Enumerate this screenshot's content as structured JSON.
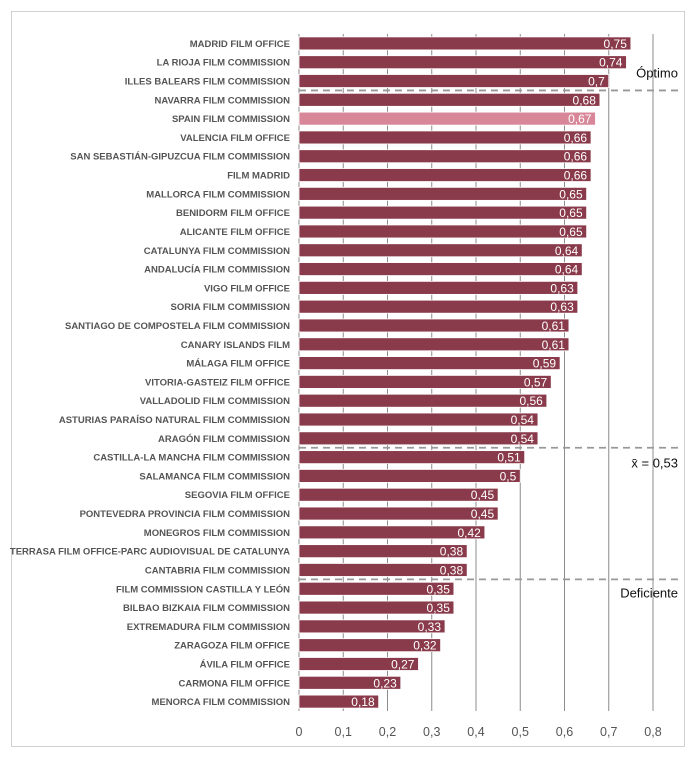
{
  "chart_data": {
    "type": "bar",
    "orientation": "horizontal",
    "title": "",
    "xlabel": "",
    "ylabel": "",
    "xlim": [
      0,
      0.8
    ],
    "grid": true,
    "categories": [
      "MADRID FILM OFFICE",
      "LA RIOJA FILM COMMISSION",
      "ILLES BALEARS FILM COMMISSION",
      "NAVARRA FILM COMMISSION",
      "SPAIN FILM COMMISSION",
      "VALENCIA FILM OFFICE",
      "SAN SEBASTIÁN-GIPUZCUA FILM COMMISSION",
      "FILM MADRID",
      "MALLORCA FILM COMMISSION",
      "BENIDORM FILM OFFICE",
      "ALICANTE FILM OFFICE",
      "CATALUNYA FILM COMMISSION",
      "ANDALUCÍA FILM COMMISSION",
      "VIGO FILM OFFICE",
      "SORIA FILM COMMISSION",
      "SANTIAGO DE COMPOSTELA FILM COMMISSION",
      "CANARY ISLANDS FILM",
      "MÁLAGA FILM OFFICE",
      "VITORIA-GASTEIZ FILM OFFICE",
      "VALLADOLID FILM COMMISSION",
      "ASTURIAS PARAÍSO NATURAL FILM COMMISSION",
      "ARAGÓN FILM COMMISSION",
      "CASTILLA-LA MANCHA FILM COMMISSION",
      "SALAMANCA FILM COMMISSION",
      "SEGOVIA FILM OFFICE",
      "PONTEVEDRA PROVINCIA FILM COMMISSION",
      "MONEGROS FILM COMMISSION",
      "TERRASA FILM OFFICE-PARC AUDIOVISUAL DE CATALUNYA",
      "CANTABRIA FILM COMMISSION",
      "FILM COMMISSION CASTILLA Y LEÓN",
      "BILBAO BIZKAIA FILM COMMISSION",
      "EXTREMADURA FILM COMMISSION",
      "ZARAGOZA FILM OFFICE",
      "ÁVILA FILM OFFICE",
      "CARMONA FILM OFFICE",
      "MENORCA FILM COMMISSION"
    ],
    "values": [
      0.75,
      0.74,
      0.7,
      0.68,
      0.67,
      0.66,
      0.66,
      0.66,
      0.65,
      0.65,
      0.65,
      0.64,
      0.64,
      0.63,
      0.63,
      0.61,
      0.61,
      0.59,
      0.57,
      0.56,
      0.54,
      0.54,
      0.51,
      0.5,
      0.45,
      0.45,
      0.42,
      0.38,
      0.38,
      0.35,
      0.35,
      0.33,
      0.32,
      0.27,
      0.23,
      0.18
    ],
    "value_labels": [
      "0,75",
      "0,74",
      "0,7",
      "0,68",
      "0,67",
      "0,66",
      "0,66",
      "0,66",
      "0,65",
      "0,65",
      "0,65",
      "0,64",
      "0,64",
      "0,63",
      "0,63",
      "0,61",
      "0,61",
      "0,59",
      "0,57",
      "0,56",
      "0,54",
      "0,54",
      "0,51",
      "0,5",
      "0,45",
      "0,45",
      "0,42",
      "0,38",
      "0,38",
      "0,35",
      "0,35",
      "0,33",
      "0,32",
      "0,27",
      "0,23",
      "0,18"
    ],
    "ticks": [
      0,
      0.1,
      0.2,
      0.3,
      0.4,
      0.5,
      0.6,
      0.7,
      0.8
    ],
    "tick_labels": [
      "0",
      "0,1",
      "0,2",
      "0,3",
      "0,4",
      "0,5",
      "0,6",
      "0,7",
      "0,8"
    ],
    "highlight_category": "SPAIN FILM COMMISSION",
    "colors": {
      "bar": "#8a3b4b",
      "highlight": "#d88799",
      "bar_outline": "#ffffff",
      "grid": "#8c8c8c",
      "threshold": "#999999"
    },
    "thresholds": [
      {
        "label": "Óptimo",
        "between": [
          "ILLES BALEARS FILM COMMISSION",
          "NAVARRA FILM COMMISSION"
        ]
      },
      {
        "label": "x̄ = 0,53",
        "between": [
          "ARAGÓN FILM COMMISSION",
          "CASTILLA-LA MANCHA FILM COMMISSION"
        ]
      },
      {
        "label": "Deficiente",
        "between": [
          "CANTABRIA FILM COMMISSION",
          "FILM COMMISSION CASTILLA Y LEÓN"
        ]
      }
    ]
  }
}
